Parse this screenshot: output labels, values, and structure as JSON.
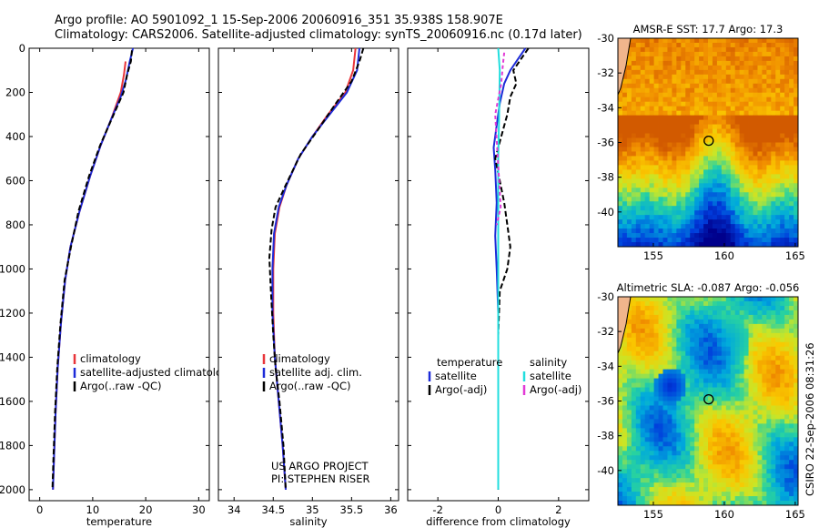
{
  "header": {
    "line1": "Argo profile: AO 5901092_1 15-Sep-2006 20060916_351 35.938S 158.907E",
    "line2": "Climatology: CARS2006. Satellite-adjusted climatology: synTS_20060916.nc (0.17d later)"
  },
  "footer_stamp": "CSIRO 22-Sep-2006 08:31:26",
  "colors": {
    "climatology": "#e8353a",
    "satellite": "#1d2bd8",
    "argo": "#000000",
    "sal_sat": "#22dede",
    "sal_argo": "#e23ad6"
  },
  "chart_data": [
    {
      "type": "line",
      "id": "temperature",
      "xlabel": "temperature",
      "xlim": [
        -2,
        32
      ],
      "ylim": [
        2050,
        0
      ],
      "xticks": [
        0,
        10,
        20,
        30
      ],
      "yticks": [
        0,
        200,
        400,
        600,
        800,
        1000,
        1200,
        1400,
        1600,
        1800,
        2000
      ],
      "legend": [
        "climatology",
        "satellite-adjusted climatology",
        "Argo(..raw -QC)"
      ],
      "series": [
        {
          "name": "climatology",
          "color": "#e8353a",
          "points": [
            [
              16.2,
              60
            ],
            [
              15.9,
              120
            ],
            [
              15.3,
              200
            ],
            [
              13.5,
              320
            ],
            [
              11.5,
              440
            ],
            [
              9.5,
              580
            ],
            [
              7.5,
              740
            ],
            [
              5.8,
              900
            ],
            [
              4.8,
              1050
            ],
            [
              4.0,
              1250
            ],
            [
              3.4,
              1450
            ],
            [
              3.0,
              1650
            ],
            [
              2.7,
              1850
            ],
            [
              2.5,
              2000
            ]
          ]
        },
        {
          "name": "satellite-adjusted climatology",
          "color": "#1d2bd8",
          "points": [
            [
              17.6,
              0
            ],
            [
              17.0,
              60
            ],
            [
              16.3,
              140
            ],
            [
              15.3,
              220
            ],
            [
              13.5,
              320
            ],
            [
              11.5,
              440
            ],
            [
              9.5,
              580
            ],
            [
              7.5,
              740
            ],
            [
              5.8,
              900
            ],
            [
              4.8,
              1050
            ],
            [
              4.0,
              1250
            ],
            [
              3.4,
              1450
            ],
            [
              3.0,
              1650
            ],
            [
              2.7,
              1850
            ],
            [
              2.5,
              2000
            ]
          ]
        },
        {
          "name": "Argo(..raw -QC)",
          "color": "#000000",
          "points": [
            [
              17.4,
              10
            ],
            [
              17.2,
              60
            ],
            [
              16.5,
              120
            ],
            [
              15.8,
              200
            ],
            [
              13.6,
              320
            ],
            [
              11.4,
              440
            ],
            [
              9.3,
              580
            ],
            [
              7.3,
              740
            ],
            [
              5.9,
              900
            ],
            [
              4.7,
              1050
            ],
            [
              3.9,
              1250
            ],
            [
              3.3,
              1450
            ],
            [
              2.9,
              1650
            ],
            [
              2.6,
              1850
            ],
            [
              2.4,
              2000
            ]
          ]
        }
      ]
    },
    {
      "type": "line",
      "id": "salinity",
      "xlabel": "salinity",
      "xlim": [
        33.8,
        36.1
      ],
      "ylim": [
        2050,
        0
      ],
      "xticks": [
        34,
        34.5,
        35,
        35.5,
        36
      ],
      "legend": [
        "climatology",
        "satellite adj. clim.",
        "Argo(..raw -QC)"
      ],
      "annotation": [
        "US ARGO PROJECT",
        "PI: STEPHEN RISER"
      ],
      "series": [
        {
          "name": "climatology",
          "color": "#e8353a",
          "points": [
            [
              35.55,
              0
            ],
            [
              35.52,
              100
            ],
            [
              35.42,
              200
            ],
            [
              35.2,
              300
            ],
            [
              35.0,
              400
            ],
            [
              34.82,
              500
            ],
            [
              34.67,
              620
            ],
            [
              34.58,
              720
            ],
            [
              34.52,
              840
            ],
            [
              34.5,
              1000
            ],
            [
              34.5,
              1200
            ],
            [
              34.52,
              1400
            ],
            [
              34.57,
              1600
            ],
            [
              34.62,
              1800
            ],
            [
              34.66,
              2000
            ]
          ]
        },
        {
          "name": "satellite adj. clim.",
          "color": "#1d2bd8",
          "points": [
            [
              35.6,
              0
            ],
            [
              35.57,
              100
            ],
            [
              35.44,
              200
            ],
            [
              35.22,
              300
            ],
            [
              35.0,
              400
            ],
            [
              34.82,
              500
            ],
            [
              34.67,
              620
            ],
            [
              34.57,
              720
            ],
            [
              34.51,
              840
            ],
            [
              34.49,
              1000
            ],
            [
              34.49,
              1200
            ],
            [
              34.52,
              1400
            ],
            [
              34.57,
              1600
            ],
            [
              34.62,
              1800
            ],
            [
              34.66,
              2000
            ]
          ]
        },
        {
          "name": "Argo(..raw -QC)",
          "color": "#000000",
          "points": [
            [
              35.65,
              0
            ],
            [
              35.6,
              60
            ],
            [
              35.5,
              150
            ],
            [
              35.3,
              250
            ],
            [
              35.05,
              380
            ],
            [
              34.85,
              480
            ],
            [
              34.66,
              620
            ],
            [
              34.53,
              720
            ],
            [
              34.48,
              820
            ],
            [
              34.45,
              950
            ],
            [
              34.47,
              1100
            ],
            [
              34.5,
              1300
            ],
            [
              34.53,
              1450
            ],
            [
              34.58,
              1600
            ],
            [
              34.63,
              1800
            ],
            [
              34.66,
              2000
            ]
          ]
        }
      ]
    },
    {
      "type": "line",
      "id": "difference",
      "xlabel": "difference from climatology",
      "xlim": [
        -3,
        3
      ],
      "ylim": [
        2050,
        0
      ],
      "xticks": [
        -2,
        0,
        2
      ],
      "legend_left_title": "temperature",
      "legend_right_title": "salinity",
      "legend_left": [
        "satellite",
        "Argo(-adj)"
      ],
      "legend_right": [
        "satellite",
        "Argo(-adj)"
      ],
      "series": [
        {
          "name": "temperature satellite",
          "color": "#1d2bd8",
          "points": [
            [
              0.9,
              0
            ],
            [
              0.7,
              40
            ],
            [
              0.4,
              100
            ],
            [
              0.2,
              160
            ],
            [
              0.05,
              250
            ],
            [
              -0.05,
              350
            ],
            [
              -0.15,
              450
            ],
            [
              -0.1,
              550
            ],
            [
              -0.05,
              700
            ],
            [
              -0.1,
              850
            ],
            [
              -0.05,
              1000
            ],
            [
              0,
              1200
            ],
            [
              0,
              1600
            ],
            [
              0,
              2000
            ]
          ]
        },
        {
          "name": "temperature Argo(-adj)",
          "color": "#000000",
          "points": [
            [
              1.0,
              0
            ],
            [
              0.8,
              40
            ],
            [
              0.5,
              100
            ],
            [
              0.6,
              160
            ],
            [
              0.4,
              220
            ],
            [
              0.3,
              300
            ],
            [
              0.1,
              400
            ],
            [
              -0.1,
              500
            ],
            [
              0.05,
              600
            ],
            [
              0.2,
              700
            ],
            [
              0.3,
              800
            ],
            [
              0.4,
              900
            ],
            [
              0.3,
              1000
            ],
            [
              0.05,
              1100
            ],
            [
              0,
              1300
            ],
            [
              0,
              2000
            ]
          ]
        },
        {
          "name": "salinity satellite",
          "color": "#22dede",
          "points": [
            [
              0,
              0
            ],
            [
              0.05,
              100
            ],
            [
              0.03,
              300
            ],
            [
              0,
              500
            ],
            [
              0,
              2000
            ]
          ]
        },
        {
          "name": "salinity Argo(-adj)",
          "color": "#e23ad6",
          "points": [
            [
              0.2,
              20
            ],
            [
              0.15,
              80
            ],
            [
              0.1,
              160
            ],
            [
              -0.1,
              300
            ],
            [
              0.08,
              720
            ],
            [
              -0.05,
              800
            ]
          ]
        }
      ]
    }
  ],
  "maps": [
    {
      "id": "sst",
      "title": "AMSR-E SST: 17.7 Argo: 17.3",
      "xlim": [
        152.5,
        165.2
      ],
      "ylim": [
        -42,
        -30
      ],
      "xticks": [
        155,
        160,
        165
      ],
      "yticks": [
        -30,
        -32,
        -34,
        -36,
        -38,
        -40
      ],
      "marker": {
        "lon": 158.9,
        "lat": -35.9
      }
    },
    {
      "id": "sla",
      "title": "Altimetric SLA: -0.087 Argo: -0.056",
      "xlim": [
        152.5,
        165.2
      ],
      "ylim": [
        -42,
        -30
      ],
      "xticks": [
        155,
        160,
        165
      ],
      "yticks": [
        -30,
        -32,
        -34,
        -36,
        -38,
        -40
      ],
      "marker": {
        "lon": 158.9,
        "lat": -35.9
      }
    }
  ]
}
